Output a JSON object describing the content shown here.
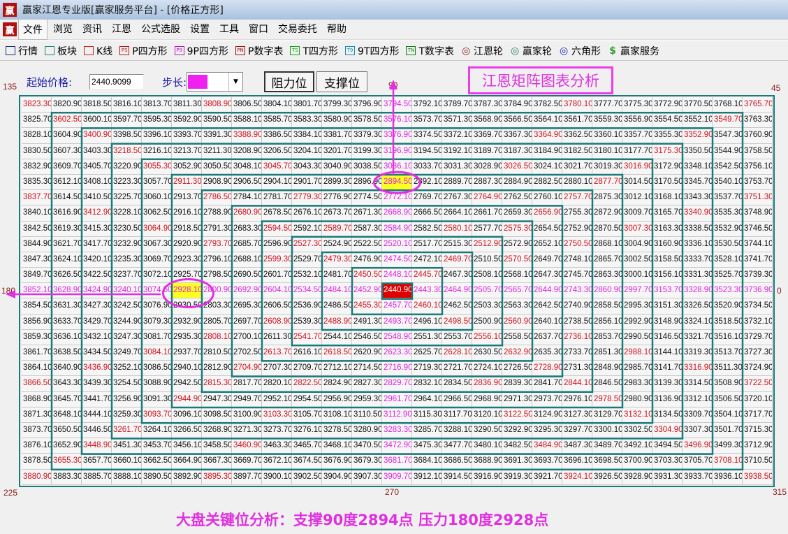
{
  "window": {
    "title": "赢家江恩专业版[赢家服务平台] - [价格正方形]",
    "logo": "赢"
  },
  "menu": [
    "文件",
    "浏览",
    "资讯",
    "江恩",
    "公式选股",
    "设置",
    "工具",
    "窗口",
    "交易委托",
    "帮助"
  ],
  "toolbar": [
    {
      "label": "行情",
      "icon": "calendar-grid-icon",
      "icon_text": "",
      "color": "#1a2a7a"
    },
    {
      "label": "板块",
      "icon": "blocks-icon",
      "icon_text": "",
      "color": "#208080"
    },
    {
      "label": "K线",
      "icon": "candlestick-icon",
      "icon_text": "",
      "color": "#d02020"
    },
    {
      "label": "P四方形",
      "icon": "ps-icon",
      "icon_text": "PS",
      "color": "#c01010"
    },
    {
      "label": "9P四方形",
      "icon": "p9-icon",
      "icon_text": "P9",
      "color": "#c010c0"
    },
    {
      "label": "P数字表",
      "icon": "pn-icon",
      "icon_text": "PN",
      "color": "#a01010"
    },
    {
      "label": "T四方形",
      "icon": "ts-icon",
      "icon_text": "TS",
      "color": "#10a010"
    },
    {
      "label": "9T四方形",
      "icon": "t9-icon",
      "icon_text": "T9",
      "color": "#1090b0"
    },
    {
      "label": "T数字表",
      "icon": "tn-icon",
      "icon_text": "TN",
      "color": "#108010"
    },
    {
      "label": "江恩轮",
      "icon": "gann-wheel-icon",
      "icon_text": "◎",
      "color": "#8b1a1a"
    },
    {
      "label": "赢家轮",
      "icon": "winner-wheel-icon",
      "icon_text": "◎",
      "color": "#208060"
    },
    {
      "label": "六角形",
      "icon": "hexagon-icon",
      "icon_text": "◎",
      "color": "#2020c0"
    },
    {
      "label": "赢家服务",
      "icon": "dollar-icon",
      "icon_text": "$",
      "color": "#30a030"
    }
  ],
  "controls": {
    "start_price_label": "起始价格:",
    "start_price_value": "2440.9099",
    "step_label": "步长:",
    "step_color": "#f020f0",
    "resistance_button": "阻力位",
    "support_button": "支撑位"
  },
  "heading": "江恩矩阵图表分析",
  "angles": {
    "top_left": "135",
    "top": "90",
    "top_right": "45",
    "left": "180",
    "right": "0",
    "bottom_left": "225",
    "bottom": "270",
    "bottom_right": "315"
  },
  "colors": {
    "diagonal": "#d0101a",
    "cross": "#e020e0",
    "center_bg": "#e00000",
    "highlight_bg": "#ffff20",
    "square_lines": "#1a7a7a",
    "annotation": "#e030e0"
  },
  "highlights": [
    "2894.50",
    "2928.10"
  ],
  "grid": {
    "rows": [
      [
        3823.3,
        3820.9,
        3818.5,
        3816.1,
        3813.7,
        3811.3,
        3808.9,
        3806.5,
        3804.1,
        3801.7,
        3799.3,
        3796.9,
        3794.5,
        3792.1,
        3789.7,
        3787.3,
        3784.9,
        3782.5,
        3780.1,
        3777.7,
        3775.3,
        3772.9,
        3770.5,
        3768.1,
        3765.7
      ],
      [
        3825.7,
        3602.5,
        3600.1,
        3597.7,
        3595.3,
        3592.9,
        3590.5,
        3588.1,
        3585.7,
        3583.3,
        3580.9,
        3578.5,
        3576.1,
        3573.7,
        3571.3,
        3568.9,
        3566.5,
        3564.1,
        3561.7,
        3559.3,
        3556.9,
        3554.5,
        3552.1,
        3549.7,
        3763.3
      ],
      [
        3828.1,
        3604.9,
        3400.9,
        3398.5,
        3396.1,
        3393.7,
        3391.3,
        3388.9,
        3386.5,
        3384.1,
        3381.7,
        3379.3,
        3376.9,
        3374.5,
        3372.1,
        3369.7,
        3367.3,
        3364.9,
        3362.5,
        3360.1,
        3357.7,
        3355.3,
        3352.9,
        3547.3,
        3760.9
      ],
      [
        3830.5,
        3607.3,
        3403.3,
        3218.5,
        3216.1,
        3213.7,
        3211.3,
        3208.9,
        3206.5,
        3204.1,
        3201.7,
        3199.3,
        3196.9,
        3194.5,
        3192.1,
        3189.7,
        3187.3,
        3184.9,
        3182.5,
        3180.1,
        3177.7,
        3175.3,
        3350.5,
        3544.9,
        3758.5
      ],
      [
        3832.9,
        3609.7,
        3405.7,
        3220.9,
        3055.3,
        3052.9,
        3050.5,
        3048.1,
        3045.7,
        3043.3,
        3040.9,
        3038.5,
        3036.1,
        3033.7,
        3031.3,
        3028.9,
        3026.5,
        3024.1,
        3021.7,
        3019.3,
        3016.9,
        3172.9,
        3348.1,
        3542.5,
        3756.1
      ],
      [
        3835.3,
        3612.1,
        3408.1,
        3223.3,
        3057.7,
        2911.3,
        2908.9,
        2906.5,
        2904.1,
        2901.7,
        2899.3,
        2896.9,
        2894.5,
        2892.1,
        2889.7,
        2887.3,
        2884.9,
        2882.5,
        2880.1,
        2877.7,
        3014.5,
        3170.5,
        3345.7,
        3540.1,
        3753.7
      ],
      [
        3837.7,
        3614.5,
        3410.5,
        3225.7,
        3060.1,
        2913.7,
        2786.5,
        2784.1,
        2781.7,
        2779.3,
        2776.9,
        2774.5,
        2772.1,
        2769.7,
        2767.3,
        2764.9,
        2762.5,
        2760.1,
        2757.7,
        2875.3,
        3012.1,
        3168.1,
        3343.3,
        3537.7,
        3751.3
      ],
      [
        3840.1,
        3616.9,
        3412.9,
        3228.1,
        3062.5,
        2916.1,
        2788.9,
        2680.9,
        2678.5,
        2676.1,
        2673.7,
        2671.3,
        2668.9,
        2666.5,
        2664.1,
        2661.7,
        2659.3,
        2656.9,
        2755.3,
        2872.9,
        3009.7,
        3165.7,
        3340.9,
        3535.3,
        3748.9
      ],
      [
        3842.5,
        3619.3,
        3415.3,
        3230.5,
        3064.9,
        2918.5,
        2791.3,
        2683.3,
        2594.5,
        2592.1,
        2589.7,
        2587.3,
        2584.9,
        2582.5,
        2580.1,
        2577.7,
        2575.3,
        2654.5,
        2752.9,
        2870.5,
        3007.3,
        3163.3,
        3338.5,
        3532.9,
        3746.5
      ],
      [
        3844.9,
        3621.7,
        3417.7,
        3232.9,
        3067.3,
        2920.9,
        2793.7,
        2685.7,
        2596.9,
        2527.3,
        2524.9,
        2522.5,
        2520.1,
        2517.7,
        2515.3,
        2512.9,
        2572.9,
        2652.1,
        2750.5,
        2868.1,
        3004.9,
        3160.9,
        3336.1,
        3530.5,
        3744.1
      ],
      [
        3847.3,
        3624.1,
        3420.1,
        3235.3,
        3069.7,
        2923.3,
        2796.1,
        2688.1,
        2599.3,
        2529.7,
        2479.3,
        2476.9,
        2474.5,
        2472.1,
        2469.7,
        2510.5,
        2570.5,
        2649.7,
        2748.1,
        2865.7,
        3002.5,
        3158.5,
        3333.7,
        3528.1,
        3741.7
      ],
      [
        3849.7,
        3626.5,
        3422.5,
        3237.7,
        3072.1,
        2925.7,
        2798.5,
        2690.5,
        2601.7,
        2532.1,
        2481.7,
        2450.5,
        2448.1,
        2445.7,
        2467.3,
        2508.1,
        2568.1,
        2647.3,
        2745.7,
        2863.3,
        3000.1,
        3156.1,
        3331.3,
        3525.7,
        3739.3
      ],
      [
        3852.1,
        3628.9,
        3424.9,
        3240.1,
        3074.5,
        2928.1,
        2800.9,
        2692.9,
        2604.1,
        2534.5,
        2484.1,
        2452.9,
        2440.9,
        2443.3,
        2464.9,
        2505.7,
        2565.7,
        2644.9,
        2743.3,
        2860.9,
        2997.7,
        3153.7,
        3328.9,
        3523.3,
        3736.9
      ],
      [
        3854.5,
        3631.3,
        3427.3,
        3242.5,
        3076.9,
        2930.5,
        2803.3,
        2695.3,
        2606.5,
        2536.9,
        2486.5,
        2455.3,
        2457.7,
        2460.1,
        2462.5,
        2503.3,
        2563.3,
        2642.5,
        2740.9,
        2858.5,
        2995.3,
        3151.3,
        3326.5,
        3520.9,
        3734.5
      ],
      [
        3856.9,
        3633.7,
        3429.7,
        3244.9,
        3079.3,
        2932.9,
        2805.7,
        2697.7,
        2608.9,
        2539.3,
        2488.9,
        2491.3,
        2493.7,
        2496.1,
        2498.5,
        2500.9,
        2560.9,
        2640.1,
        2738.5,
        2856.1,
        2992.9,
        3148.9,
        3324.1,
        3518.5,
        3732.1
      ],
      [
        3859.3,
        3636.1,
        3432.1,
        3247.3,
        3081.7,
        2935.3,
        2808.1,
        2700.1,
        2611.3,
        2541.7,
        2544.1,
        2546.5,
        2548.9,
        2551.3,
        2553.7,
        2556.1,
        2558.5,
        2637.7,
        2736.1,
        2853.7,
        2990.5,
        3146.5,
        3321.7,
        3516.1,
        3729.7
      ],
      [
        3861.7,
        3638.5,
        3434.5,
        3249.7,
        3084.1,
        2937.7,
        2810.5,
        2702.5,
        2613.7,
        2616.1,
        2618.5,
        2620.9,
        2623.3,
        2625.7,
        2628.1,
        2630.5,
        2632.9,
        2635.3,
        2733.7,
        2851.3,
        2988.1,
        3144.1,
        3319.3,
        3513.7,
        3727.3
      ],
      [
        3864.1,
        3640.9,
        3436.9,
        3252.1,
        3086.5,
        2940.1,
        2812.9,
        2704.9,
        2707.3,
        2709.7,
        2712.1,
        2714.5,
        2716.9,
        2719.3,
        2721.7,
        2724.1,
        2726.5,
        2728.9,
        2731.3,
        2848.9,
        2985.7,
        3141.7,
        3316.9,
        3511.3,
        3724.9
      ],
      [
        3866.5,
        3643.3,
        3439.3,
        3254.5,
        3088.9,
        2942.5,
        2815.3,
        2817.7,
        2820.1,
        2822.5,
        2824.9,
        2827.3,
        2829.7,
        2832.1,
        2834.5,
        2836.9,
        2839.3,
        2841.7,
        2844.1,
        2846.5,
        2983.3,
        3139.3,
        3314.5,
        3508.9,
        3722.5
      ],
      [
        3868.9,
        3645.7,
        3441.7,
        3256.9,
        3091.3,
        2944.9,
        2947.3,
        2949.7,
        2952.1,
        2954.5,
        2956.9,
        2959.3,
        2961.7,
        2964.1,
        2966.5,
        2968.9,
        2971.3,
        2973.7,
        2976.1,
        2978.5,
        2980.9,
        3136.9,
        3312.1,
        3506.5,
        3720.1
      ],
      [
        3871.3,
        3648.1,
        3444.1,
        3259.3,
        3093.7,
        3096.1,
        3098.5,
        3100.9,
        3103.3,
        3105.7,
        3108.1,
        3110.5,
        3112.9,
        3115.3,
        3117.7,
        3120.1,
        3122.5,
        3124.9,
        3127.3,
        3129.7,
        3132.1,
        3134.5,
        3309.7,
        3504.1,
        3717.7
      ],
      [
        3873.7,
        3650.5,
        3446.5,
        3261.7,
        3264.1,
        3266.5,
        3268.9,
        3271.3,
        3273.7,
        3276.1,
        3278.5,
        3280.9,
        3283.3,
        3285.7,
        3288.1,
        3290.5,
        3292.9,
        3295.3,
        3297.7,
        3300.1,
        3302.5,
        3304.9,
        3307.3,
        3501.7,
        3715.3
      ],
      [
        3876.1,
        3652.9,
        3448.9,
        3451.3,
        3453.7,
        3456.1,
        3458.5,
        3460.9,
        3463.3,
        3465.7,
        3468.1,
        3470.5,
        3472.9,
        3475.3,
        3477.7,
        3480.1,
        3482.5,
        3484.9,
        3487.3,
        3489.7,
        3492.1,
        3494.5,
        3496.9,
        3499.3,
        3712.9
      ],
      [
        3878.5,
        3655.3,
        3657.7,
        3660.1,
        3662.5,
        3664.9,
        3667.3,
        3669.7,
        3672.1,
        3674.5,
        3676.9,
        3679.3,
        3681.7,
        3684.1,
        3686.5,
        3688.9,
        3691.3,
        3693.7,
        3696.1,
        3698.5,
        3700.9,
        3703.3,
        3705.7,
        3708.1,
        3710.5
      ],
      [
        3880.9,
        3883.3,
        3885.7,
        3888.1,
        3890.5,
        3892.9,
        3895.3,
        3897.7,
        3900.1,
        3902.5,
        3904.9,
        3907.3,
        3909.7,
        3912.1,
        3914.5,
        3916.9,
        3919.3,
        3921.7,
        3924.1,
        3926.5,
        3928.9,
        3931.3,
        3933.7,
        3936.1,
        3938.5
      ]
    ]
  },
  "caption": "大盘关键位分析：支撑90度2894点   压力180度2928点"
}
